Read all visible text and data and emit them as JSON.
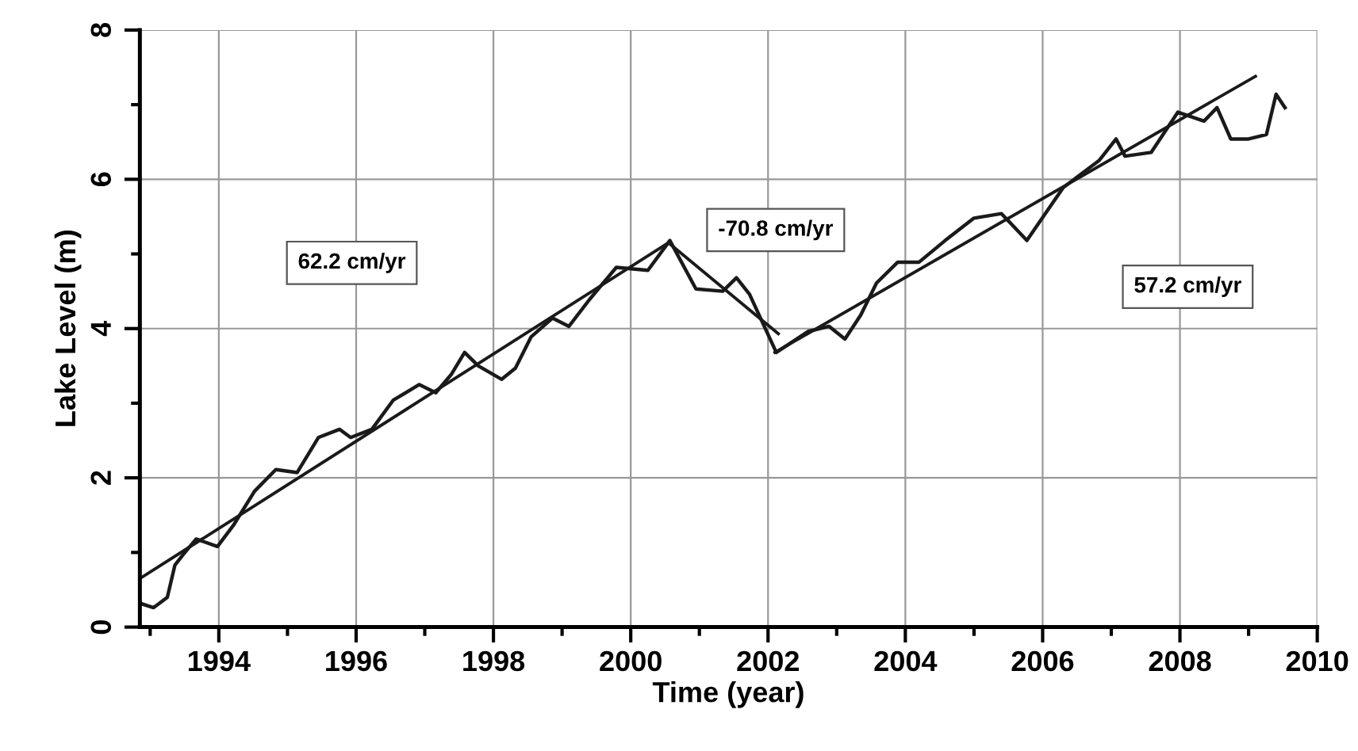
{
  "chart_data": {
    "type": "line",
    "xlabel": "Time (year)",
    "ylabel": "Lake Level (m)",
    "xlim": [
      1992.85,
      2010
    ],
    "ylim": [
      0,
      8
    ],
    "xticks": [
      {
        "value": 1993,
        "label": null
      },
      1994,
      {
        "value": 1995,
        "label": null
      },
      1996,
      {
        "value": 1997,
        "label": null
      },
      1998,
      {
        "value": 1999,
        "label": null
      },
      2000,
      {
        "value": 2001,
        "label": null
      },
      2002,
      {
        "value": 2003,
        "label": null
      },
      2004,
      {
        "value": 2005,
        "label": null
      },
      2006,
      {
        "value": 2007,
        "label": null
      },
      2008,
      {
        "value": 2009,
        "label": null
      },
      2010
    ],
    "yticks": [
      0,
      {
        "value": 1,
        "label": null
      },
      2,
      {
        "value": 3,
        "label": null
      },
      4,
      {
        "value": 5,
        "label": null
      },
      6,
      {
        "value": 7,
        "label": null
      },
      8
    ],
    "grid": true,
    "legend": false,
    "marker": "none",
    "line_style": "solid",
    "series": [
      {
        "color": "#1a1a1a",
        "x": [
          1992.85,
          1993.05,
          1993.25,
          1993.36,
          1993.48,
          1993.67,
          1993.98,
          1994.21,
          1994.52,
          1994.83,
          1995.14,
          1995.45,
          1995.76,
          1995.92,
          1996.23,
          1996.54,
          1996.92,
          1997.16,
          1997.39,
          1997.58,
          1997.78,
          1998.12,
          1998.32,
          1998.55,
          1998.86,
          1999.1,
          1999.4,
          1999.79,
          2000.25,
          2000.57,
          2000.95,
          2001.34,
          2001.54,
          2001.73,
          2002.12,
          2002.58,
          2002.89,
          2003.12,
          2003.35,
          2003.58,
          2003.89,
          2004.2,
          2004.58,
          2005.0,
          2005.4,
          2005.77,
          2006.3,
          2006.82,
          2007.07,
          2007.2,
          2007.58,
          2007.97,
          2008.35,
          2008.54,
          2008.74,
          2009.0,
          2009.26,
          2009.4,
          2009.53
        ],
        "values": [
          0.32,
          0.26,
          0.4,
          0.83,
          0.97,
          1.18,
          1.08,
          1.36,
          1.82,
          2.11,
          2.07,
          2.54,
          2.65,
          2.54,
          2.65,
          3.04,
          3.25,
          3.14,
          3.39,
          3.68,
          3.5,
          3.32,
          3.47,
          3.89,
          4.14,
          4.03,
          4.39,
          4.82,
          4.78,
          5.18,
          4.53,
          4.5,
          4.68,
          4.46,
          3.68,
          3.96,
          4.03,
          3.86,
          4.18,
          4.61,
          4.89,
          4.89,
          5.18,
          5.48,
          5.54,
          5.18,
          5.89,
          6.25,
          6.54,
          6.31,
          6.36,
          6.9,
          6.78,
          6.96,
          6.54,
          6.54,
          6.6,
          7.14,
          6.96
        ]
      },
      {
        "color": "#1a1a1a",
        "x": [
          1992.85,
          2000.55
        ],
        "values": [
          0.65,
          5.15
        ]
      },
      {
        "color": "#1a1a1a",
        "x": [
          2000.55,
          2002.15
        ],
        "values": [
          5.15,
          3.93
        ]
      },
      {
        "color": "#1a1a1a",
        "x": [
          2002.1,
          2009.1
        ],
        "values": [
          3.68,
          7.38
        ]
      }
    ],
    "annotations": [
      "62.2 cm/yr",
      "-70.8 cm/yr",
      "57.2 cm/yr"
    ]
  }
}
